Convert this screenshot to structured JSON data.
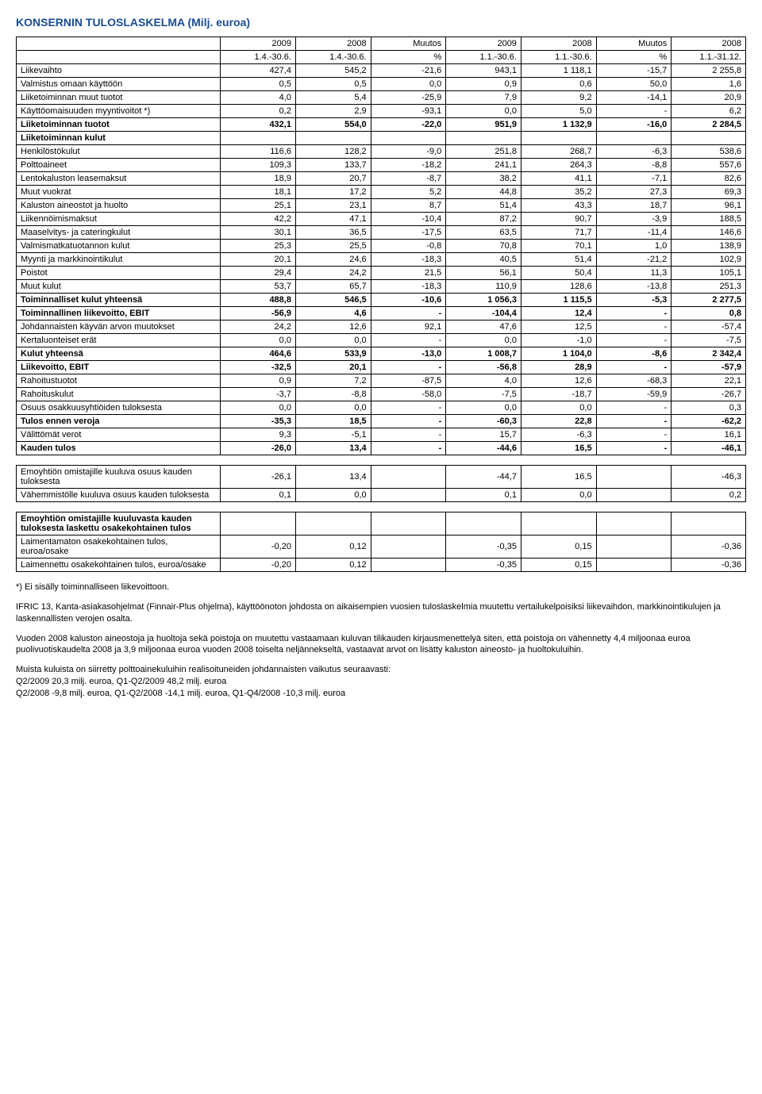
{
  "title": "KONSERNIN TULOSLASKELMA (Milj. euroa)",
  "headers": {
    "r1": [
      "",
      "2009",
      "2008",
      "Muutos",
      "2009",
      "2008",
      "Muutos",
      "2008"
    ],
    "r2": [
      "",
      "1.4.-30.6.",
      "1.4.-30.6.",
      "%",
      "1.1.-30.6.",
      "1.1.-30.6.",
      "%",
      "1.1.-31.12."
    ]
  },
  "rows": [
    {
      "label": "Liikevaihto",
      "v": [
        "427,4",
        "545,2",
        "-21,6",
        "943,1",
        "1 118,1",
        "-15,7",
        "2 255,8"
      ],
      "bold": false
    },
    {
      "label": "Valmistus omaan käyttöön",
      "v": [
        "0,5",
        "0,5",
        "0,0",
        "0,9",
        "0,6",
        "50,0",
        "1,6"
      ],
      "bold": false
    },
    {
      "label": "Liiketoiminnan muut tuotot",
      "v": [
        "4,0",
        "5,4",
        "-25,9",
        "7,9",
        "9,2",
        "-14,1",
        "20,9"
      ],
      "bold": false
    },
    {
      "label": "Käyttöomaisuuden myyntivoitot *)",
      "v": [
        "0,2",
        "2,9",
        "-93,1",
        "0,0",
        "5,0",
        "-",
        "6,2"
      ],
      "bold": false
    },
    {
      "label": "Liiketoiminnan tuotot",
      "v": [
        "432,1",
        "554,0",
        "-22,0",
        "951,9",
        "1 132,9",
        "-16,0",
        "2 284,5"
      ],
      "bold": true
    },
    {
      "label": "Liiketoiminnan kulut",
      "v": [
        "",
        "",
        "",
        "",
        "",
        "",
        ""
      ],
      "bold": true
    },
    {
      "label": "Henkilöstökulut",
      "v": [
        "116,6",
        "128,2",
        "-9,0",
        "251,8",
        "268,7",
        "-6,3",
        "538,6"
      ],
      "bold": false
    },
    {
      "label": "Polttoaineet",
      "v": [
        "109,3",
        "133,7",
        "-18,2",
        "241,1",
        "264,3",
        "-8,8",
        "557,6"
      ],
      "bold": false
    },
    {
      "label": "Lentokaluston leasemaksut",
      "v": [
        "18,9",
        "20,7",
        "-8,7",
        "38,2",
        "41,1",
        "-7,1",
        "82,6"
      ],
      "bold": false
    },
    {
      "label": "Muut vuokrat",
      "v": [
        "18,1",
        "17,2",
        "5,2",
        "44,8",
        "35,2",
        "27,3",
        "69,3"
      ],
      "bold": false
    },
    {
      "label": "Kaluston aineostot ja huolto",
      "v": [
        "25,1",
        "23,1",
        "8,7",
        "51,4",
        "43,3",
        "18,7",
        "96,1"
      ],
      "bold": false
    },
    {
      "label": "Liikennöimismaksut",
      "v": [
        "42,2",
        "47,1",
        "-10,4",
        "87,2",
        "90,7",
        "-3,9",
        "188,5"
      ],
      "bold": false
    },
    {
      "label": "Maaselvitys- ja cateringkulut",
      "v": [
        "30,1",
        "36,5",
        "-17,5",
        "63,5",
        "71,7",
        "-11,4",
        "146,6"
      ],
      "bold": false
    },
    {
      "label": "Valmismatkatuotannon kulut",
      "v": [
        "25,3",
        "25,5",
        "-0,8",
        "70,8",
        "70,1",
        "1,0",
        "138,9"
      ],
      "bold": false
    },
    {
      "label": "Myynti ja markkinointikulut",
      "v": [
        "20,1",
        "24,6",
        "-18,3",
        "40,5",
        "51,4",
        "-21,2",
        "102,9"
      ],
      "bold": false
    },
    {
      "label": "Poistot",
      "v": [
        "29,4",
        "24,2",
        "21,5",
        "56,1",
        "50,4",
        "11,3",
        "105,1"
      ],
      "bold": false
    },
    {
      "label": "Muut kulut",
      "v": [
        "53,7",
        "65,7",
        "-18,3",
        "110,9",
        "128,6",
        "-13,8",
        "251,3"
      ],
      "bold": false
    },
    {
      "label": "Toiminnalliset kulut yhteensä",
      "v": [
        "488,8",
        "546,5",
        "-10,6",
        "1 056,3",
        "1 115,5",
        "-5,3",
        "2 277,5"
      ],
      "bold": true
    },
    {
      "label": "Toiminnallinen liikevoitto, EBIT",
      "v": [
        "-56,9",
        "4,6",
        "-",
        "-104,4",
        "12,4",
        "-",
        "0,8"
      ],
      "bold": true
    },
    {
      "label": "Johdannaisten käyvän arvon muutokset",
      "v": [
        "24,2",
        "12,6",
        "92,1",
        "47,6",
        "12,5",
        "-",
        "-57,4"
      ],
      "bold": false
    },
    {
      "label": "Kertaluonteiset erät",
      "v": [
        "0,0",
        "0,0",
        "-",
        "0,0",
        "-1,0",
        "-",
        "-7,5"
      ],
      "bold": false
    },
    {
      "label": "Kulut yhteensä",
      "v": [
        "464,6",
        "533,9",
        "-13,0",
        "1 008,7",
        "1 104,0",
        "-8,6",
        "2 342,4"
      ],
      "bold": true
    },
    {
      "label": "Liikevoitto, EBIT",
      "v": [
        "-32,5",
        "20,1",
        "-",
        "-56,8",
        "28,9",
        "-",
        "-57,9"
      ],
      "bold": true
    },
    {
      "label": "Rahoitustuotot",
      "v": [
        "0,9",
        "7,2",
        "-87,5",
        "4,0",
        "12,6",
        "-68,3",
        "22,1"
      ],
      "bold": false
    },
    {
      "label": "Rahoituskulut",
      "v": [
        "-3,7",
        "-8,8",
        "-58,0",
        "-7,5",
        "-18,7",
        "-59,9",
        "-26,7"
      ],
      "bold": false
    },
    {
      "label": "Osuus osakkuusyhtiöiden tuloksesta",
      "v": [
        "0,0",
        "0,0",
        "-",
        "0,0",
        "0,0",
        "-",
        "0,3"
      ],
      "bold": false
    },
    {
      "label": "Tulos ennen veroja",
      "v": [
        "-35,3",
        "18,5",
        "-",
        "-60,3",
        "22,8",
        "-",
        "-62,2"
      ],
      "bold": true
    },
    {
      "label": "Välittömät verot",
      "v": [
        "9,3",
        "-5,1",
        "-",
        "15,7",
        "-6,3",
        "-",
        "16,1"
      ],
      "bold": false
    },
    {
      "label": "Kauden tulos",
      "v": [
        "-26,0",
        "13,4",
        "-",
        "-44,6",
        "16,5",
        "-",
        "-46,1"
      ],
      "bold": true
    }
  ],
  "sub1": [
    {
      "label": "Emoyhtiön omistajille kuuluva osuus kauden tuloksesta",
      "v": [
        "-26,1",
        "13,4",
        "",
        "-44,7",
        "16,5",
        "",
        "-46,3"
      ]
    },
    {
      "label": "Vähemmistölle kuuluva osuus kauden tuloksesta",
      "v": [
        "0,1",
        "0,0",
        "",
        "0,1",
        "0,0",
        "",
        "0,2"
      ]
    }
  ],
  "sub2": [
    {
      "label": "Emoyhtiön omistajille kuuluvasta kauden tuloksesta laskettu osakekohtainen tulos",
      "v": [
        "",
        "",
        "",
        "",
        "",
        "",
        ""
      ],
      "bold": true
    },
    {
      "label": "Laimentamaton osakekohtainen tulos, euroa/osake",
      "v": [
        "-0,20",
        "0,12",
        "",
        "-0,35",
        "0,15",
        "",
        "-0,36"
      ]
    },
    {
      "label": "Laimennettu osakekohtainen tulos, euroa/osake",
      "v": [
        "-0,20",
        "0,12",
        "",
        "-0,35",
        "0,15",
        "",
        "-0,36"
      ]
    }
  ],
  "footnote": "*) Ei sisälly toiminnalliseen liikevoittoon.",
  "p1": "IFRIC 13, Kanta-asiakasohjelmat (Finnair-Plus ohjelma), käyttöönoton johdosta on aikaisempien vuosien tuloslaskelmia muutettu vertailukelpoisiksi liikevaihdon, markkinointikulujen ja laskennallisten verojen osalta.",
  "p2": "Vuoden 2008 kaluston aineostoja ja huoltoja sekä poistoja on muutettu vastaamaan kuluvan tilikauden kirjausmenettelyä siten, että poistoja on vähennetty 4,4 miljoonaa euroa puolivuotiskaudelta 2008 ja 3,9 miljoonaa euroa vuoden 2008 toiselta neljännekseltä, vastaavat arvot on lisätty kaluston aineosto- ja huoltokuluihin.",
  "p3a": "Muista kuluista on siirretty polttoainekuluihin realisoituneiden johdannaisten vaikutus seuraavasti:",
  "p3b": "Q2/2009 20,3 milj. euroa, Q1-Q2/2009 48,2 milj. euroa",
  "p3c": "Q2/2008 -9,8 milj. euroa, Q1-Q2/2008 -14,1 milj. euroa, Q1-Q4/2008 -10,3 milj. euroa",
  "colwidths": [
    "28%",
    "10.3%",
    "10.3%",
    "10.3%",
    "10.3%",
    "10.3%",
    "10.3%",
    "10.2%"
  ]
}
